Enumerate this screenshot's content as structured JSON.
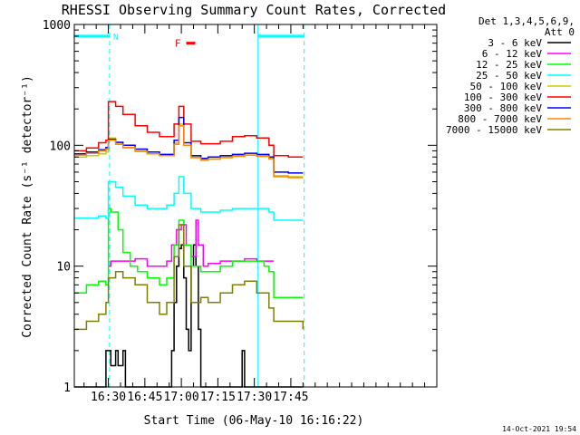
{
  "chart_data": {
    "type": "line",
    "title": "RHESSI Observing Summary Count Rates, Corrected",
    "xlabel": "Start Time (06-May-10 16:16:22)",
    "ylabel": "Corrected Count Rate (s⁻¹ detector⁻¹)",
    "ylog": true,
    "ylim": [
      1,
      1000
    ],
    "xlim_min": [
      0,
      149
    ],
    "x_ticks": [
      {
        "label": "16:30",
        "min": 14
      },
      {
        "label": "16:45",
        "min": 29
      },
      {
        "label": "17:00",
        "min": 44
      },
      {
        "label": "17:15",
        "min": 59
      },
      {
        "label": "17:30",
        "min": 74
      },
      {
        "label": "17:45",
        "min": 89
      }
    ],
    "y_ticks": [
      {
        "label": "1",
        "v": 1
      },
      {
        "label": "10",
        "v": 10
      },
      {
        "label": "100",
        "v": 100
      },
      {
        "label": "1000",
        "v": 1000
      }
    ],
    "legend_header": [
      "Det 1,3,4,5,6,9,",
      "Att 0"
    ],
    "legend_position": "right",
    "flags": {
      "night_bar": {
        "label": "N",
        "color": "#00ffff",
        "segments": [
          [
            0,
            14.5
          ],
          [
            75.5,
            94.5
          ]
        ],
        "level": 800
      },
      "flare_marker": {
        "label": "F",
        "color": "#ff0000",
        "min": 46,
        "level": 700
      },
      "saa_lines_min": [
        0,
        14.5,
        75.5,
        94.5
      ]
    },
    "series": [
      {
        "name": "3 - 6 keV",
        "color": "#000000",
        "points": [
          [
            0,
            1
          ],
          [
            12,
            1
          ],
          [
            13,
            2
          ],
          [
            15,
            1.5
          ],
          [
            17,
            2
          ],
          [
            18,
            1.5
          ],
          [
            20,
            2
          ],
          [
            21,
            1
          ],
          [
            38,
            1
          ],
          [
            40,
            2
          ],
          [
            41,
            5
          ],
          [
            42,
            10
          ],
          [
            43,
            14
          ],
          [
            44,
            15
          ],
          [
            45,
            8
          ],
          [
            46,
            3
          ],
          [
            47,
            2
          ],
          [
            48,
            10
          ],
          [
            49,
            15
          ],
          [
            50,
            10
          ],
          [
            51,
            3
          ],
          [
            52,
            1
          ],
          [
            68,
            1
          ],
          [
            69,
            2
          ],
          [
            70,
            1
          ],
          [
            94,
            1
          ]
        ]
      },
      {
        "name": "6 - 12 keV",
        "color": "#ff00ff",
        "points": [
          [
            14,
            10
          ],
          [
            15,
            11
          ],
          [
            20,
            11
          ],
          [
            25,
            11.5
          ],
          [
            30,
            10
          ],
          [
            35,
            10
          ],
          [
            38,
            11
          ],
          [
            40,
            15
          ],
          [
            42,
            20
          ],
          [
            44,
            22
          ],
          [
            46,
            15
          ],
          [
            48,
            12
          ],
          [
            50,
            24
          ],
          [
            51,
            15
          ],
          [
            53,
            10
          ],
          [
            55,
            10.5
          ],
          [
            60,
            11
          ],
          [
            65,
            11
          ],
          [
            70,
            11.5
          ],
          [
            75,
            11
          ],
          [
            80,
            11
          ],
          [
            82,
            11
          ]
        ]
      },
      {
        "name": "12 - 25 keV",
        "color": "#00ff00",
        "points": [
          [
            0,
            6
          ],
          [
            5,
            7
          ],
          [
            10,
            7.5
          ],
          [
            13,
            7
          ],
          [
            14,
            30
          ],
          [
            15,
            28
          ],
          [
            18,
            20
          ],
          [
            20,
            13
          ],
          [
            23,
            10
          ],
          [
            26,
            9
          ],
          [
            30,
            8
          ],
          [
            35,
            7
          ],
          [
            38,
            8
          ],
          [
            41,
            15
          ],
          [
            43,
            24
          ],
          [
            45,
            15
          ],
          [
            48,
            10
          ],
          [
            52,
            9
          ],
          [
            55,
            9
          ],
          [
            60,
            10
          ],
          [
            65,
            11
          ],
          [
            70,
            11
          ],
          [
            75,
            11
          ],
          [
            78,
            10
          ],
          [
            80,
            9
          ],
          [
            82,
            5.5
          ],
          [
            85,
            5.5
          ],
          [
            90,
            5.5
          ],
          [
            94,
            5.5
          ]
        ]
      },
      {
        "name": "25 - 50 keV",
        "color": "#00ffff",
        "points": [
          [
            0,
            25
          ],
          [
            5,
            25
          ],
          [
            10,
            26
          ],
          [
            13,
            25
          ],
          [
            14,
            50
          ],
          [
            17,
            45
          ],
          [
            20,
            38
          ],
          [
            25,
            32
          ],
          [
            30,
            30
          ],
          [
            35,
            30
          ],
          [
            38,
            32
          ],
          [
            41,
            40
          ],
          [
            43,
            55
          ],
          [
            45,
            40
          ],
          [
            48,
            30
          ],
          [
            52,
            28
          ],
          [
            55,
            28
          ],
          [
            60,
            29
          ],
          [
            65,
            30
          ],
          [
            70,
            30
          ],
          [
            75,
            30
          ],
          [
            80,
            28
          ],
          [
            82,
            24
          ],
          [
            88,
            24
          ],
          [
            94,
            24
          ]
        ]
      },
      {
        "name": "50 - 100 keV",
        "color": "#cccc00",
        "points": [
          [
            0,
            80
          ],
          [
            5,
            82
          ],
          [
            10,
            85
          ],
          [
            13,
            88
          ],
          [
            14,
            115
          ],
          [
            17,
            105
          ],
          [
            20,
            95
          ],
          [
            25,
            90
          ],
          [
            30,
            85
          ],
          [
            35,
            82
          ],
          [
            38,
            82
          ],
          [
            41,
            105
          ],
          [
            43,
            150
          ],
          [
            45,
            100
          ],
          [
            48,
            80
          ],
          [
            52,
            75
          ],
          [
            55,
            77
          ],
          [
            60,
            80
          ],
          [
            65,
            82
          ],
          [
            70,
            83
          ],
          [
            75,
            82
          ],
          [
            80,
            78
          ],
          [
            82,
            56
          ],
          [
            88,
            55
          ],
          [
            94,
            55
          ]
        ]
      },
      {
        "name": "100 - 300 keV",
        "color": "#ff0000",
        "points": [
          [
            0,
            90
          ],
          [
            5,
            95
          ],
          [
            10,
            105
          ],
          [
            13,
            110
          ],
          [
            14,
            230
          ],
          [
            17,
            210
          ],
          [
            20,
            180
          ],
          [
            25,
            145
          ],
          [
            30,
            128
          ],
          [
            35,
            118
          ],
          [
            38,
            118
          ],
          [
            41,
            150
          ],
          [
            43,
            210
          ],
          [
            45,
            150
          ],
          [
            48,
            108
          ],
          [
            52,
            103
          ],
          [
            55,
            103
          ],
          [
            60,
            108
          ],
          [
            65,
            118
          ],
          [
            70,
            120
          ],
          [
            75,
            115
          ],
          [
            80,
            100
          ],
          [
            82,
            82
          ],
          [
            88,
            80
          ],
          [
            94,
            80
          ]
        ]
      },
      {
        "name": "300 - 800 keV",
        "color": "#0000ff",
        "points": [
          [
            0,
            85
          ],
          [
            5,
            88
          ],
          [
            10,
            92
          ],
          [
            13,
            96
          ],
          [
            14,
            112
          ],
          [
            17,
            106
          ],
          [
            20,
            100
          ],
          [
            25,
            93
          ],
          [
            30,
            88
          ],
          [
            35,
            84
          ],
          [
            38,
            84
          ],
          [
            41,
            110
          ],
          [
            43,
            170
          ],
          [
            45,
            105
          ],
          [
            48,
            82
          ],
          [
            52,
            78
          ],
          [
            55,
            80
          ],
          [
            60,
            82
          ],
          [
            65,
            84
          ],
          [
            70,
            86
          ],
          [
            75,
            84
          ],
          [
            80,
            80
          ],
          [
            82,
            60
          ],
          [
            88,
            59
          ],
          [
            94,
            59
          ]
        ]
      },
      {
        "name": "800 - 7000 keV",
        "color": "#ff8800",
        "points": [
          [
            0,
            83
          ],
          [
            5,
            86
          ],
          [
            10,
            90
          ],
          [
            13,
            93
          ],
          [
            14,
            110
          ],
          [
            17,
            102
          ],
          [
            20,
            96
          ],
          [
            25,
            89
          ],
          [
            30,
            85
          ],
          [
            35,
            82
          ],
          [
            38,
            82
          ],
          [
            41,
            102
          ],
          [
            43,
            145
          ],
          [
            45,
            100
          ],
          [
            48,
            79
          ],
          [
            52,
            76
          ],
          [
            55,
            77
          ],
          [
            60,
            79
          ],
          [
            65,
            81
          ],
          [
            70,
            83
          ],
          [
            75,
            81
          ],
          [
            80,
            77
          ],
          [
            82,
            55
          ],
          [
            88,
            54
          ],
          [
            94,
            54
          ]
        ]
      },
      {
        "name": "7000 - 15000 keV",
        "color": "#808000",
        "points": [
          [
            0,
            3
          ],
          [
            5,
            3.5
          ],
          [
            10,
            4
          ],
          [
            13,
            5
          ],
          [
            14,
            8
          ],
          [
            17,
            9
          ],
          [
            20,
            8
          ],
          [
            25,
            7
          ],
          [
            30,
            5
          ],
          [
            35,
            4
          ],
          [
            38,
            5
          ],
          [
            41,
            12
          ],
          [
            43,
            22
          ],
          [
            45,
            10
          ],
          [
            48,
            5
          ],
          [
            52,
            5.5
          ],
          [
            55,
            5
          ],
          [
            60,
            6
          ],
          [
            65,
            7
          ],
          [
            70,
            7.5
          ],
          [
            75,
            6
          ],
          [
            80,
            4.5
          ],
          [
            82,
            3.5
          ],
          [
            88,
            3.5
          ],
          [
            94,
            3
          ]
        ]
      }
    ],
    "footer": "14-Oct-2021 19:54",
    "grid": false
  }
}
